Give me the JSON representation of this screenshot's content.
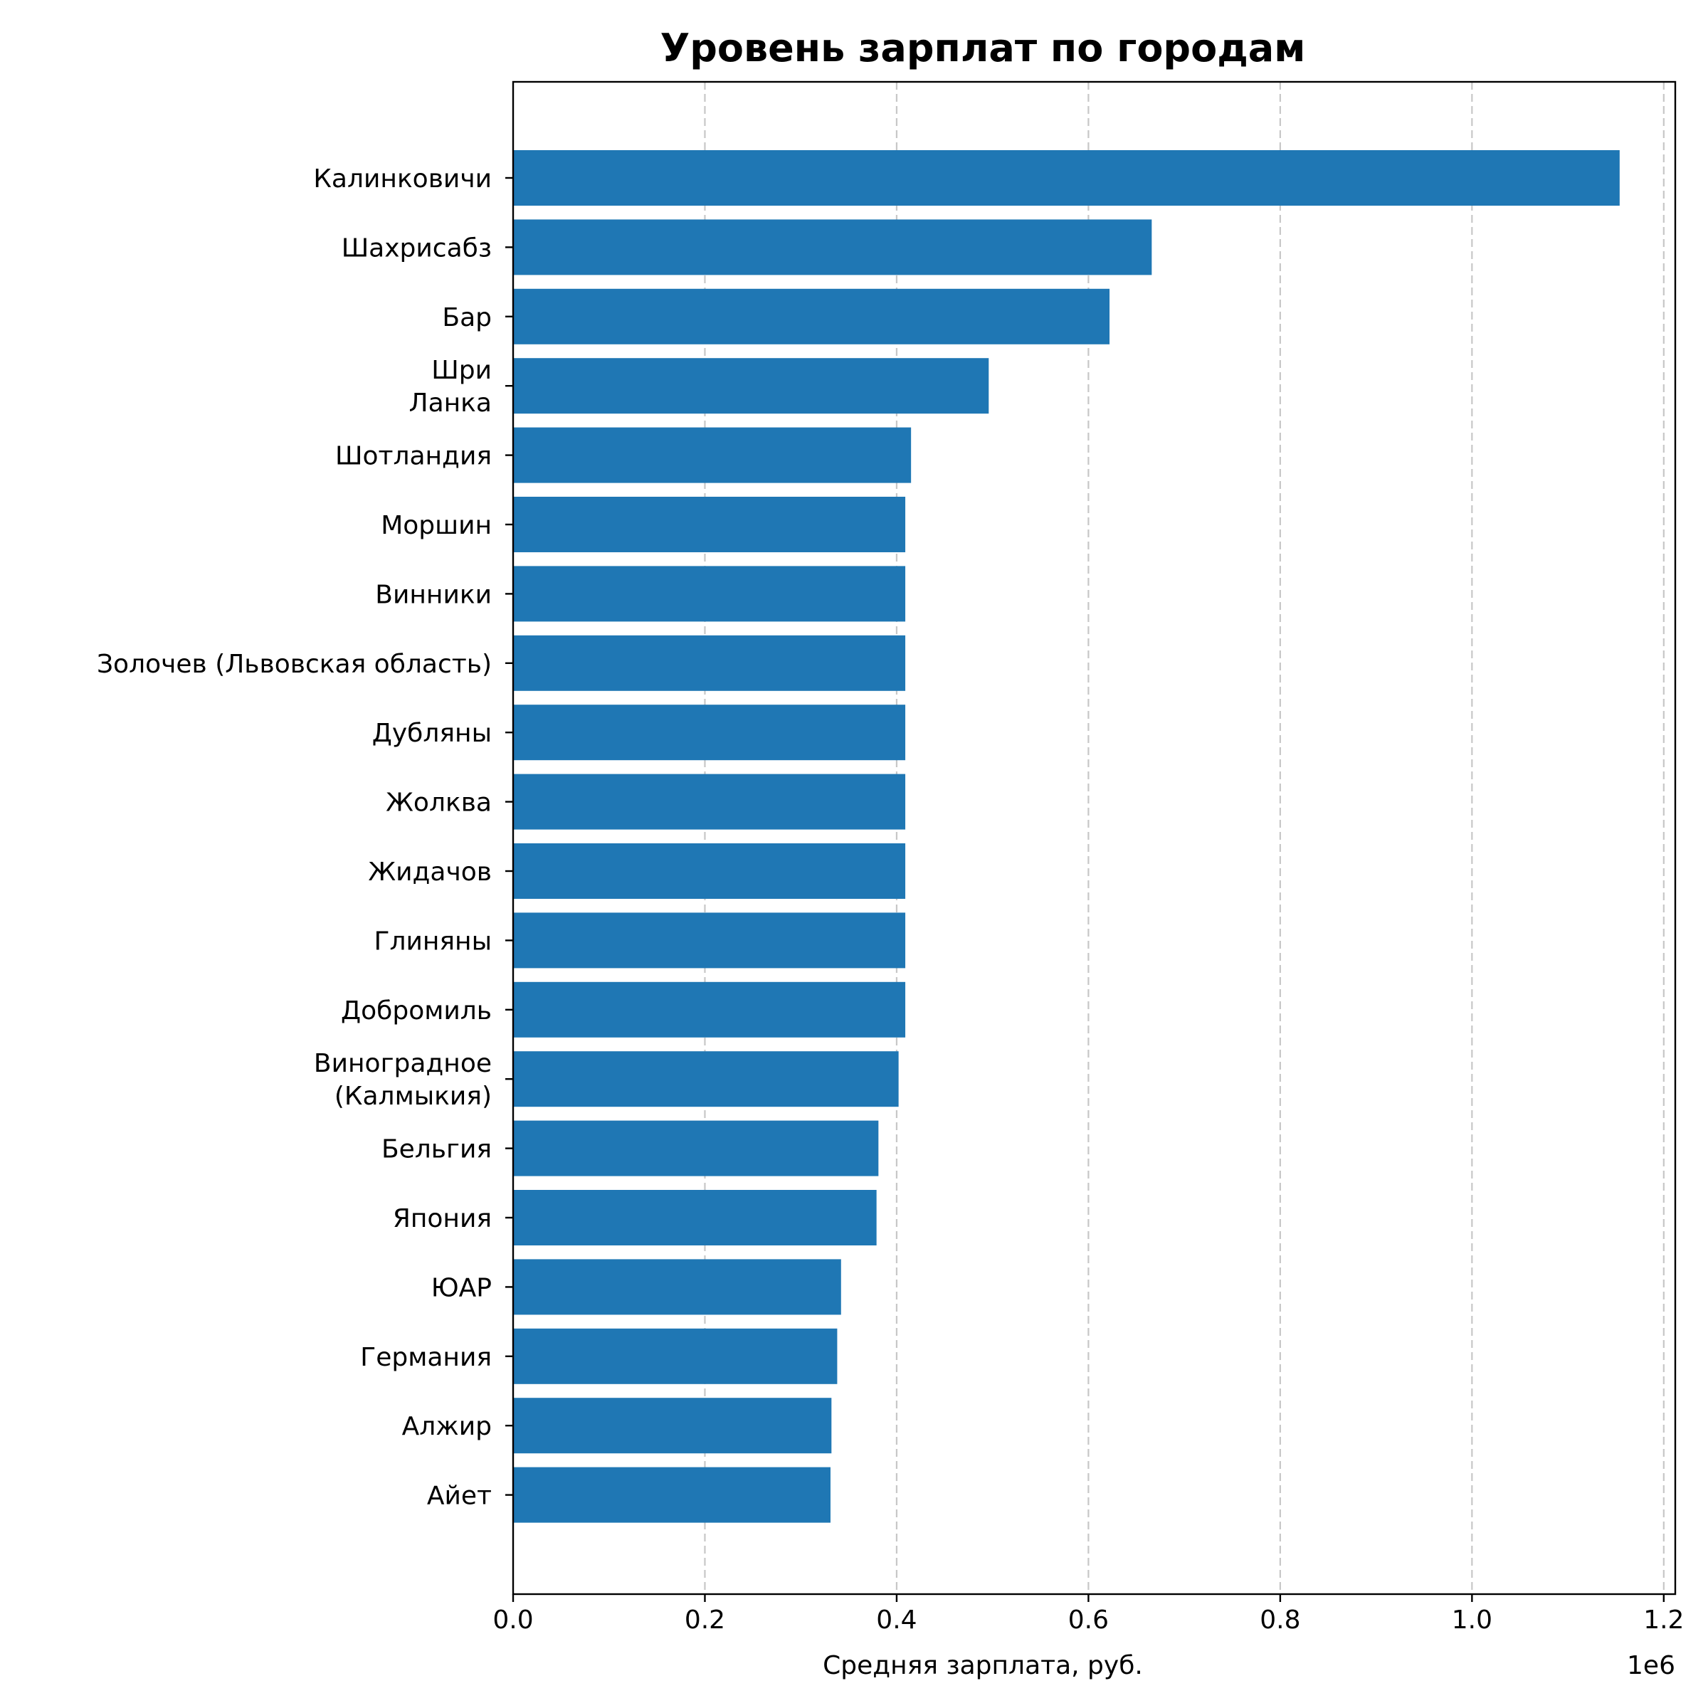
{
  "chart_data": {
    "type": "bar",
    "orientation": "horizontal",
    "title": "Уровень зарплат по городам",
    "xlabel": "Средняя зарплата, руб.",
    "ylabel": "",
    "x_scale_label": "1e6",
    "xlim": [
      0,
      1212000
    ],
    "xticks": [
      0,
      200000,
      400000,
      600000,
      800000,
      1000000,
      1200000
    ],
    "xtick_labels": [
      "0.0",
      "0.2",
      "0.4",
      "0.6",
      "0.8",
      "1.0",
      "1.2"
    ],
    "grid": "x",
    "bar_color": "#1f77b4",
    "categories": [
      [
        "Калинковичи"
      ],
      [
        "Шахрисабз"
      ],
      [
        "Бар"
      ],
      [
        "Шри",
        "Ланка"
      ],
      [
        "Шотландия"
      ],
      [
        "Моршин"
      ],
      [
        "Винники"
      ],
      [
        "Золочев (Львовская область)"
      ],
      [
        "Дубляны"
      ],
      [
        "Жолква"
      ],
      [
        "Жидачов"
      ],
      [
        "Глиняны"
      ],
      [
        "Добромиль"
      ],
      [
        "Виноградное",
        "(Калмыкия)"
      ],
      [
        "Бельгия"
      ],
      [
        "Япония"
      ],
      [
        "ЮАР"
      ],
      [
        "Германия"
      ],
      [
        "Алжир"
      ],
      [
        "Айет"
      ]
    ],
    "values": [
      1154000,
      666000,
      622000,
      496000,
      415000,
      409000,
      409000,
      409000,
      409000,
      409000,
      409000,
      409000,
      409000,
      402000,
      381000,
      379000,
      342000,
      338000,
      332000,
      331000
    ]
  }
}
